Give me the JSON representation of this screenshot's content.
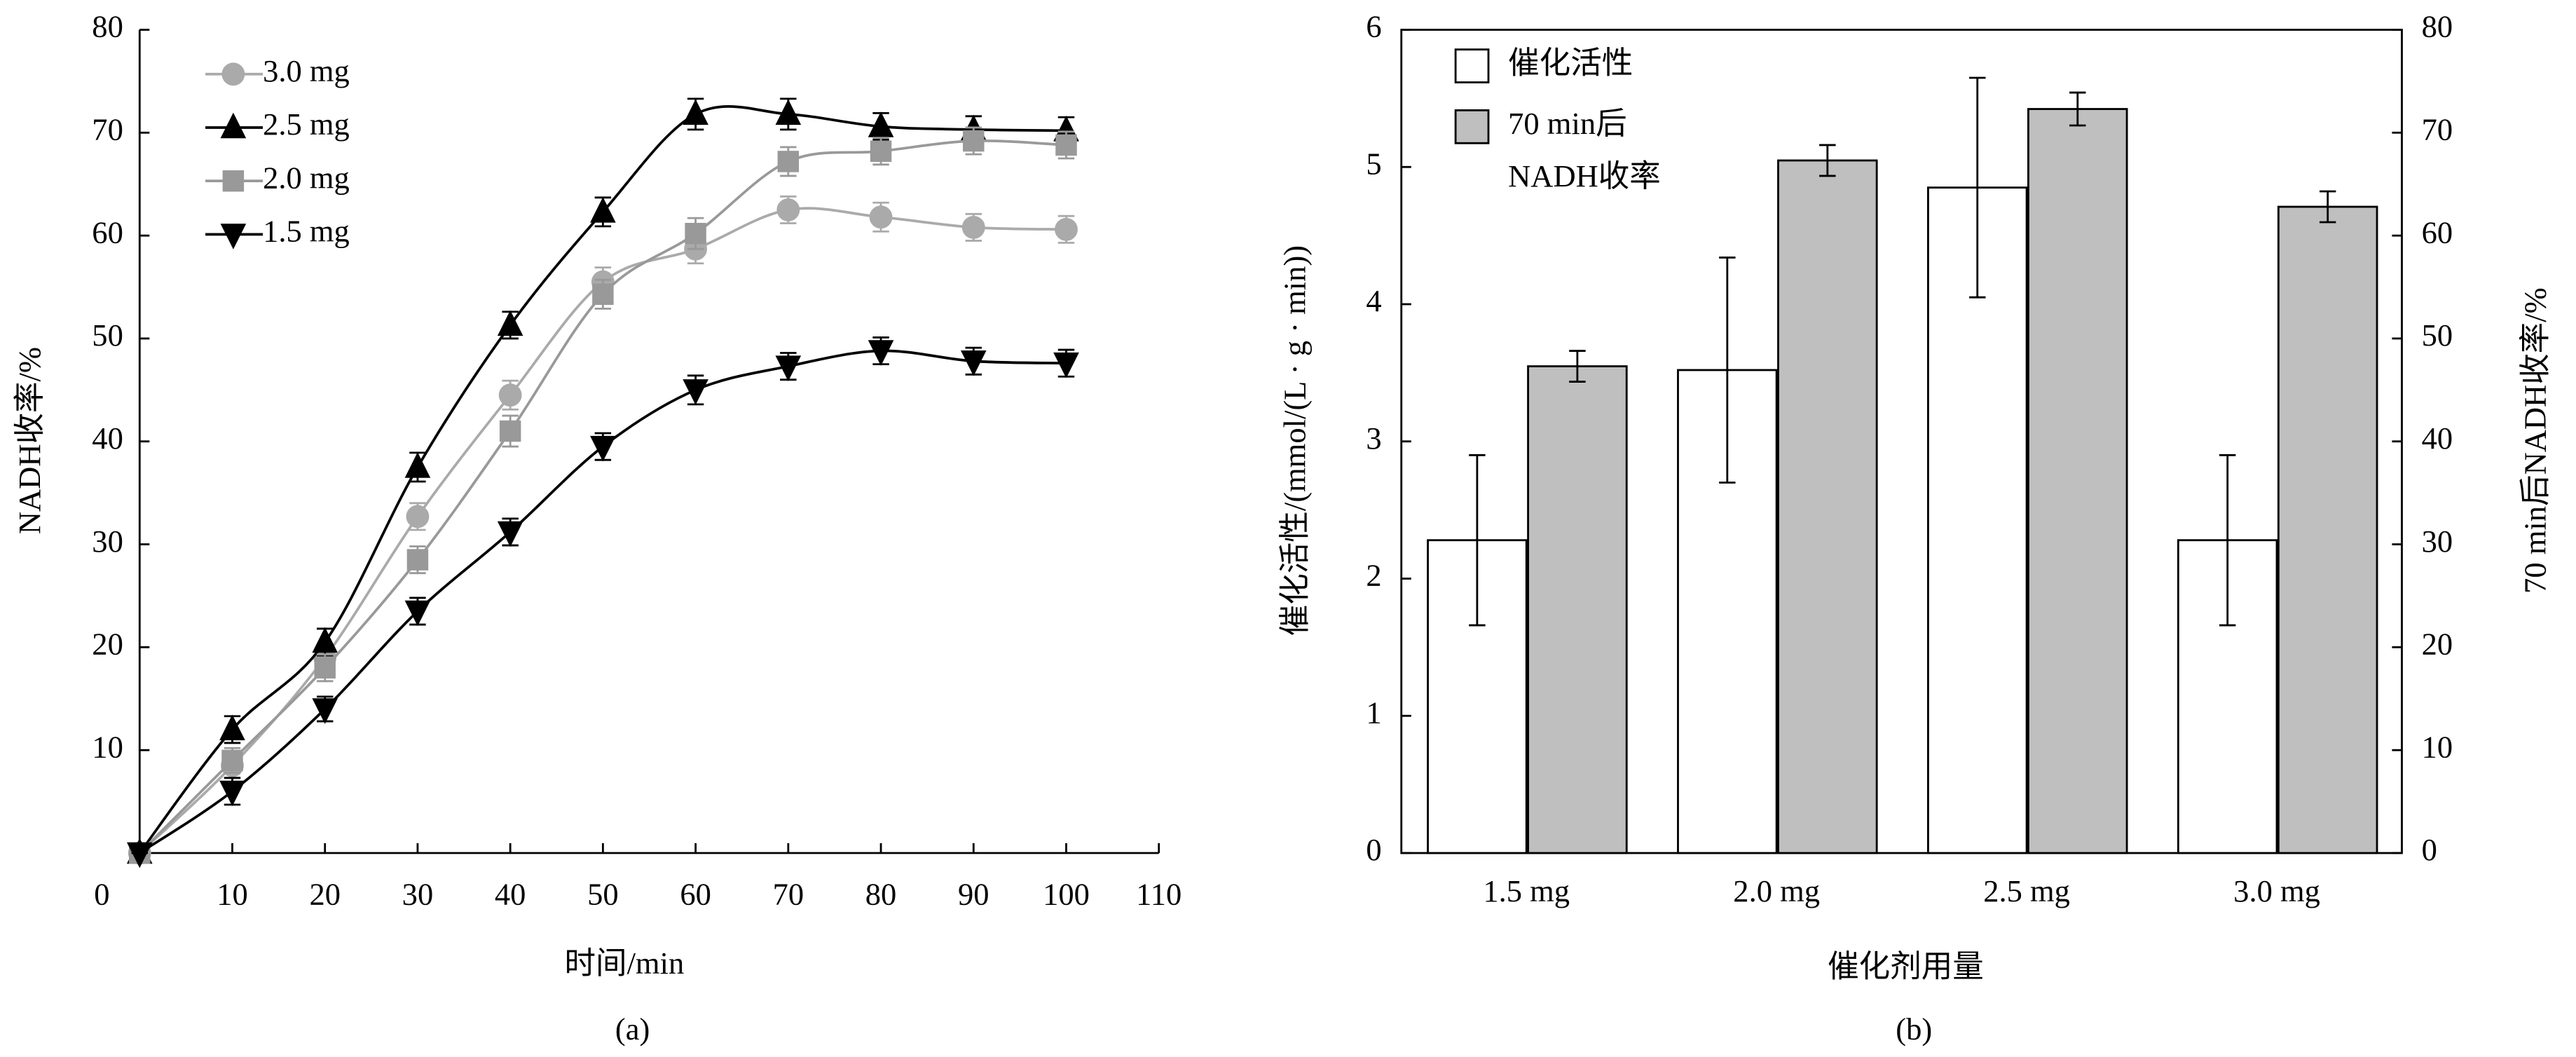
{
  "chart_data": [
    {
      "type": "line",
      "caption": "(a)",
      "xlabel": "时间/min",
      "ylabel": "NADH收率/%",
      "x": [
        0,
        10,
        20,
        30,
        40,
        50,
        60,
        70,
        80,
        90,
        100
      ],
      "xlim": [
        0,
        110
      ],
      "xticks": [
        0,
        10,
        20,
        30,
        40,
        50,
        60,
        70,
        80,
        90,
        100,
        110
      ],
      "ylim": [
        0,
        80
      ],
      "yticks": [
        10,
        20,
        30,
        40,
        50,
        60,
        70,
        80
      ],
      "legend": "upper left",
      "series": [
        {
          "name": "3.0 mg",
          "color": "#aaaaaa",
          "marker": "circle",
          "values": [
            0,
            8.5,
            19,
            32.7,
            44.5,
            55.5,
            58.7,
            62.5,
            61.8,
            60.8,
            60.6
          ],
          "errors": [
            0,
            1.2,
            1.3,
            1.3,
            1.4,
            1.4,
            1.4,
            1.3,
            1.4,
            1.3,
            1.3
          ]
        },
        {
          "name": "2.5 mg",
          "color": "#000000",
          "marker": "triangle-up",
          "values": [
            0,
            12,
            20.5,
            37.5,
            51.3,
            62.3,
            71.8,
            71.8,
            70.6,
            70.3,
            70.2
          ],
          "errors": [
            0,
            1.3,
            1.3,
            1.4,
            1.3,
            1.4,
            1.5,
            1.5,
            1.3,
            1.3,
            1.3
          ]
        },
        {
          "name": "2.0 mg",
          "color": "#999999",
          "marker": "square",
          "values": [
            0,
            9,
            18,
            28.5,
            41,
            54.3,
            60.2,
            67.2,
            68.2,
            69.2,
            68.8
          ],
          "errors": [
            0,
            1.2,
            1.3,
            1.3,
            1.5,
            1.4,
            1.5,
            1.4,
            1.3,
            1.3,
            1.3
          ]
        },
        {
          "name": "1.5 mg",
          "color": "#000000",
          "marker": "triangle-down",
          "values": [
            0,
            6,
            14,
            23.5,
            31.2,
            39.5,
            45,
            47.3,
            48.8,
            47.8,
            47.6
          ],
          "errors": [
            0,
            1.3,
            1.2,
            1.3,
            1.3,
            1.3,
            1.4,
            1.3,
            1.3,
            1.3,
            1.3
          ]
        }
      ]
    },
    {
      "type": "bar",
      "caption": "(b)",
      "xlabel": "催化剂用量",
      "ylabel": "催化活性/(mmol/(L · g · min))",
      "y2label": "70 min后NADH收率/%",
      "categories": [
        "1.5 mg",
        "2.0 mg",
        "2.5 mg",
        "3.0 mg"
      ],
      "ylim": [
        0,
        6
      ],
      "yticks": [
        0,
        1,
        2,
        3,
        4,
        5,
        6
      ],
      "y2lim": [
        0,
        80
      ],
      "y2ticks": [
        0,
        10,
        20,
        30,
        40,
        50,
        60,
        70,
        80
      ],
      "legend": "upper left",
      "series": [
        {
          "name": "催化活性",
          "color": "#ffffff",
          "values": [
            2.28,
            3.52,
            4.85,
            2.28
          ],
          "errors": [
            0.62,
            0.82,
            0.8,
            0.62
          ]
        },
        {
          "name": "70 min后\nNADH收率",
          "color": "#bfbfbf",
          "axis": "y2",
          "values": [
            47.3,
            67.3,
            72.3,
            62.8
          ],
          "errors": [
            1.5,
            1.5,
            1.6,
            1.5
          ]
        }
      ]
    }
  ]
}
